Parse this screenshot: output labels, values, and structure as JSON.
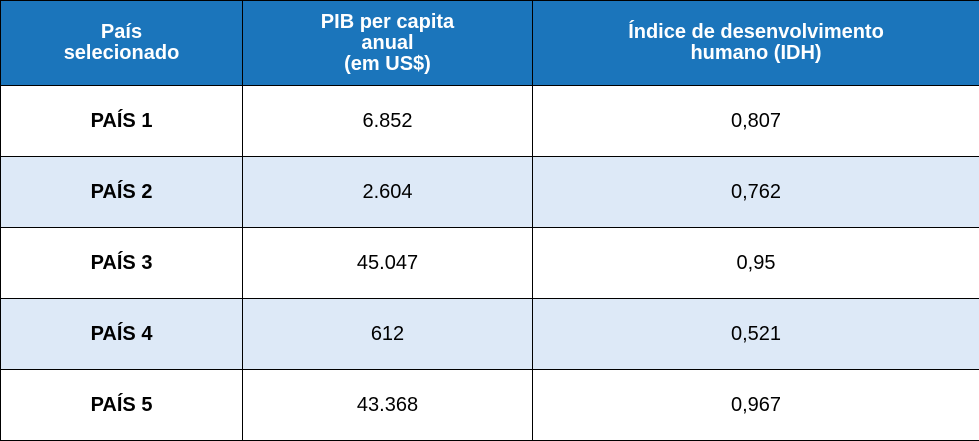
{
  "table": {
    "header": [
      [
        "País",
        "selecionado"
      ],
      [
        "PIB per capita",
        "anual",
        "(em US$)"
      ],
      [
        "Índice de desenvolvimento",
        "humano (IDH)"
      ]
    ],
    "rows": [
      [
        "PAÍS 1",
        "6.852",
        "0,807"
      ],
      [
        "PAÍS 2",
        "2.604",
        "0,762"
      ],
      [
        "PAÍS 3",
        "45.047",
        "0,95"
      ],
      [
        "PAÍS 4",
        "612",
        "0,521"
      ],
      [
        "PAÍS 5",
        "43.368",
        "0,967"
      ]
    ]
  }
}
